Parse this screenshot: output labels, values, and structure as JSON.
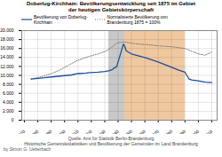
{
  "chart_data": {
    "type": "line",
    "title": "Doberlug-Kirchhain: Bevölkerungsentwicklung seit 1875 im Gebiet\nder heutigen Gebietskörperschaft",
    "series": [
      {
        "name": "Bevölkerung von Doberlug-\nKirchhain",
        "color": "#1a4fa0",
        "line_style": "solid",
        "x": [
          1875,
          1880,
          1885,
          1890,
          1895,
          1900,
          1905,
          1910,
          1916,
          1919,
          1925,
          1930,
          1933,
          1935,
          1939,
          1944,
          1945,
          1946,
          1950,
          1955,
          1960,
          1964,
          1970,
          1975,
          1980,
          1985,
          1990,
          1993,
          1995,
          2000,
          2005,
          2010
        ],
        "values": [
          9200,
          9350,
          9480,
          9650,
          9800,
          9950,
          10100,
          10400,
          10500,
          10600,
          10700,
          10850,
          11000,
          11200,
          12000,
          17000,
          16500,
          15500,
          14800,
          14400,
          14000,
          13600,
          13000,
          12400,
          11800,
          11200,
          10700,
          9200,
          9000,
          8800,
          8500,
          8400
        ]
      },
      {
        "name": "Normalisierte Bevölkerung von\nBrandenburg 1875 = 100%",
        "color": "#777777",
        "line_style": "dotted",
        "x": [
          1875,
          1880,
          1885,
          1890,
          1895,
          1900,
          1905,
          1910,
          1916,
          1919,
          1925,
          1930,
          1933,
          1935,
          1939,
          1944,
          1946,
          1950,
          1955,
          1960,
          1964,
          1970,
          1975,
          1980,
          1985,
          1990,
          1995,
          2000,
          2005,
          2010
        ],
        "values": [
          9200,
          9500,
          9900,
          10400,
          11000,
          11800,
          12600,
          13400,
          14000,
          14300,
          14800,
          15300,
          15800,
          16200,
          17200,
          17500,
          17400,
          17200,
          17000,
          16900,
          16800,
          16600,
          16500,
          16400,
          16200,
          16000,
          15400,
          14800,
          14500,
          15200
        ]
      }
    ],
    "shaded_periods": [
      {
        "start": 1933,
        "end": 1945,
        "color": "#c8c8c8"
      },
      {
        "start": 1945,
        "end": 1990,
        "color": "#f0c8a0"
      }
    ],
    "xlim": [
      1868,
      2014
    ],
    "xticks": [
      1870,
      1880,
      1890,
      1900,
      1910,
      1920,
      1930,
      1940,
      1950,
      1960,
      1970,
      1980,
      1990,
      2000,
      2010
    ],
    "ylim": [
      0,
      20000
    ],
    "yticks": [
      0,
      {
        "value": 2000,
        "label": "2.000"
      },
      {
        "value": 4000,
        "label": "4.000"
      },
      {
        "value": 6000,
        "label": "6.000"
      },
      {
        "value": 8000,
        "label": "8.000"
      },
      {
        "value": 10000,
        "label": "10.000"
      },
      {
        "value": 12000,
        "label": "12.000"
      },
      {
        "value": 14000,
        "label": "14.000"
      },
      {
        "value": 16000,
        "label": "16.000"
      },
      {
        "value": 18000,
        "label": "18.000"
      },
      {
        "value": 20000,
        "label": "20.000"
      }
    ],
    "grid": true,
    "legend": "upper left",
    "annotations": [
      "Quelle: Amt für Statistik Berlin-Brandenburg",
      "Historische Gemeindestatistiken und Bevölkerung der Gemeinden im Land Brandenburg",
      "by Simon G. Ueberbach"
    ]
  }
}
